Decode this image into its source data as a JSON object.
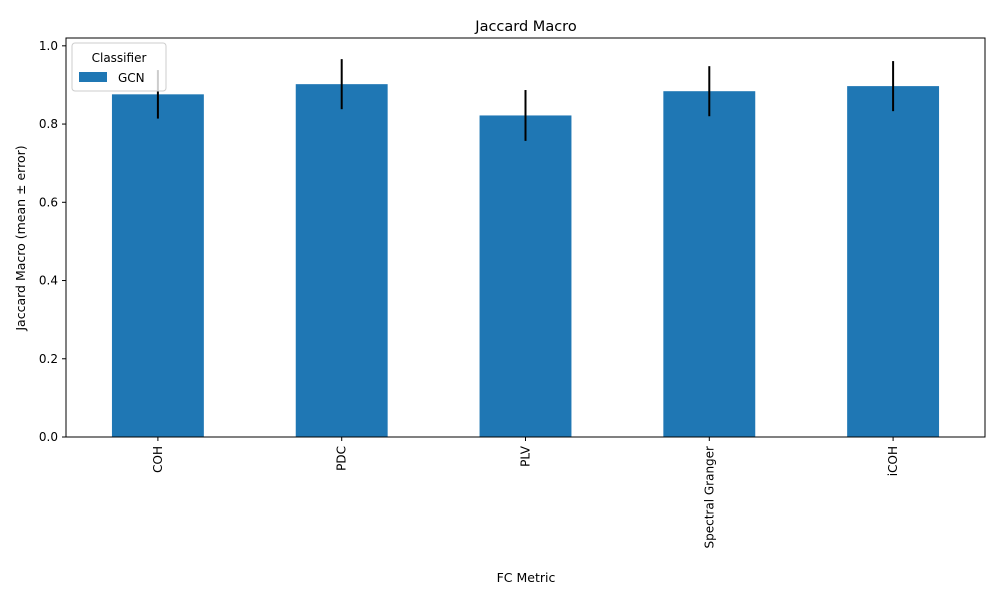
{
  "chart_data": {
    "type": "bar",
    "title": "Jaccard Macro",
    "xlabel": "FC Metric",
    "ylabel": "Jaccard Macro (mean ± error)",
    "categories": [
      "COH",
      "PDC",
      "PLV",
      "Spectral Granger",
      "iCOH"
    ],
    "series": [
      {
        "name": "GCN",
        "values": [
          0.876,
          0.902,
          0.822,
          0.884,
          0.897
        ],
        "errors": [
          0.062,
          0.064,
          0.065,
          0.064,
          0.064
        ],
        "color": "#1f77b4"
      }
    ],
    "error_bar_color": "#000000",
    "ylim": [
      0,
      1.02
    ],
    "yticks": [
      "0.0",
      "0.2",
      "0.4",
      "0.6",
      "0.8",
      "1.0"
    ],
    "ytick_values": [
      0,
      0.2,
      0.4,
      0.6,
      0.8,
      1.0
    ],
    "legend": {
      "title": "Classifier",
      "placement": "top-left"
    },
    "grid": false
  }
}
